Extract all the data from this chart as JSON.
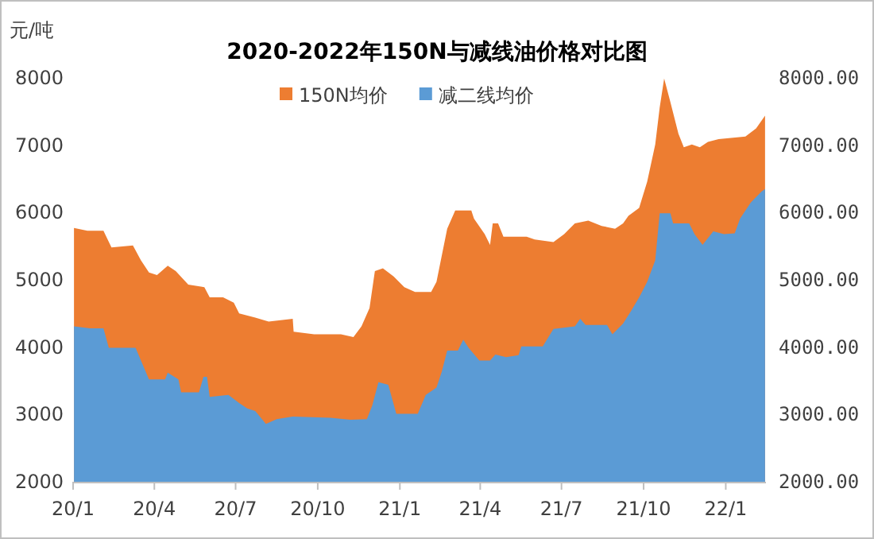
{
  "chart_data": {
    "type": "area",
    "title": "2020-2022年150N与减线油价格对比图",
    "ylabel": "元/吨",
    "xlim": [
      "2020-01-01",
      "2022-02-15"
    ],
    "xticks": [
      {
        "value": "2020-01-01",
        "label": "20/1"
      },
      {
        "value": "2020-04-01",
        "label": "20/4"
      },
      {
        "value": "2020-07-01",
        "label": "20/7"
      },
      {
        "value": "2020-10-01",
        "label": "20/10"
      },
      {
        "value": "2021-01-01",
        "label": "21/1"
      },
      {
        "value": "2021-04-01",
        "label": "21/4"
      },
      {
        "value": "2021-07-01",
        "label": "21/7"
      },
      {
        "value": "2021-10-01",
        "label": "21/10"
      },
      {
        "value": "2022-01-01",
        "label": "22/1"
      }
    ],
    "ylim": [
      2000,
      8000
    ],
    "yticks": [
      2000,
      3000,
      4000,
      5000,
      6000,
      7000,
      8000
    ],
    "y2lim": [
      2000,
      8000
    ],
    "y2ticks": [
      {
        "value": 2000,
        "label": "2000.00"
      },
      {
        "value": 3000,
        "label": "3000.00"
      },
      {
        "value": 4000,
        "label": "4000.00"
      },
      {
        "value": 5000,
        "label": "5000.00"
      },
      {
        "value": 6000,
        "label": "6000.00"
      },
      {
        "value": 7000,
        "label": "7000.00"
      },
      {
        "value": 8000,
        "label": "8000.00"
      }
    ],
    "legend": "top",
    "grid": false,
    "series": [
      {
        "name": "150N均价",
        "color": "#ed7d31",
        "x": [
          "2020-01-02",
          "2020-01-17",
          "2020-02-04",
          "2020-02-13",
          "2020-03-08",
          "2020-03-17",
          "2020-03-26",
          "2020-04-04",
          "2020-04-16",
          "2020-04-25",
          "2020-05-09",
          "2020-05-27",
          "2020-06-02",
          "2020-06-17",
          "2020-06-29",
          "2020-07-05",
          "2020-07-23",
          "2020-08-07",
          "2020-09-03",
          "2020-09-04",
          "2020-09-27",
          "2020-10-27",
          "2020-11-10",
          "2020-11-19",
          "2020-11-28",
          "2020-12-04",
          "2020-12-13",
          "2020-12-25",
          "2021-01-06",
          "2021-01-18",
          "2021-02-05",
          "2021-02-11",
          "2021-02-23",
          "2021-03-04",
          "2021-03-22",
          "2021-03-25",
          "2021-04-06",
          "2021-04-12",
          "2021-04-15",
          "2021-04-21",
          "2021-04-27",
          "2021-05-23",
          "2021-06-01",
          "2021-06-22",
          "2021-07-04",
          "2021-07-16",
          "2021-07-31",
          "2021-08-15",
          "2021-08-30",
          "2021-09-08",
          "2021-09-14",
          "2021-09-26",
          "2021-10-05",
          "2021-10-14",
          "2021-10-19",
          "2021-10-24",
          "2021-10-31",
          "2021-11-09",
          "2021-11-15",
          "2021-11-24",
          "2021-12-03",
          "2021-12-12",
          "2021-12-24",
          "2022-01-23",
          "2022-02-04",
          "2022-02-14"
        ],
        "values": [
          5770,
          5730,
          5730,
          5480,
          5510,
          5290,
          5110,
          5070,
          5210,
          5130,
          4930,
          4890,
          4740,
          4740,
          4660,
          4500,
          4440,
          4380,
          4420,
          4230,
          4190,
          4190,
          4150,
          4310,
          4580,
          5130,
          5170,
          5050,
          4890,
          4820,
          4820,
          4970,
          5760,
          6030,
          6030,
          5910,
          5680,
          5520,
          5840,
          5840,
          5640,
          5640,
          5600,
          5560,
          5680,
          5840,
          5880,
          5800,
          5760,
          5840,
          5950,
          6070,
          6460,
          7010,
          7560,
          7990,
          7640,
          7170,
          6970,
          7010,
          6970,
          7050,
          7090,
          7130,
          7250,
          7440
        ]
      },
      {
        "name": "减二线均价",
        "color": "#5b9bd5",
        "x": [
          "2020-01-02",
          "2020-01-20",
          "2020-02-04",
          "2020-02-10",
          "2020-03-11",
          "2020-03-17",
          "2020-03-26",
          "2020-04-13",
          "2020-04-16",
          "2020-04-28",
          "2020-05-01",
          "2020-05-21",
          "2020-05-26",
          "2020-05-30",
          "2020-06-02",
          "2020-06-23",
          "2020-07-05",
          "2020-07-14",
          "2020-07-23",
          "2020-08-04",
          "2020-08-16",
          "2020-09-03",
          "2020-10-15",
          "2020-11-07",
          "2020-11-25",
          "2020-12-01",
          "2020-12-08",
          "2020-12-19",
          "2020-12-28",
          "2021-01-21",
          "2021-01-30",
          "2021-02-11",
          "2021-02-17",
          "2021-02-23",
          "2021-03-07",
          "2021-03-13",
          "2021-03-19",
          "2021-03-31",
          "2021-04-12",
          "2021-04-18",
          "2021-04-30",
          "2021-05-14",
          "2021-05-17",
          "2021-06-10",
          "2021-06-22",
          "2021-07-16",
          "2021-07-22",
          "2021-07-28",
          "2021-08-21",
          "2021-08-27",
          "2021-09-08",
          "2021-09-17",
          "2021-09-26",
          "2021-10-05",
          "2021-10-14",
          "2021-10-19",
          "2021-10-31",
          "2021-11-03",
          "2021-11-21",
          "2021-11-27",
          "2021-12-06",
          "2021-12-18",
          "2021-12-30",
          "2022-01-11",
          "2022-01-17",
          "2022-01-29",
          "2022-02-10",
          "2022-02-14"
        ],
        "values": [
          4310,
          4280,
          4280,
          3990,
          3990,
          3800,
          3520,
          3520,
          3620,
          3520,
          3330,
          3330,
          3560,
          3560,
          3260,
          3290,
          3170,
          3090,
          3050,
          2860,
          2930,
          2970,
          2950,
          2920,
          2930,
          3130,
          3480,
          3440,
          3010,
          3010,
          3290,
          3400,
          3640,
          3950,
          3950,
          4110,
          3990,
          3800,
          3800,
          3890,
          3850,
          3880,
          4010,
          4010,
          4270,
          4310,
          4420,
          4330,
          4330,
          4190,
          4350,
          4540,
          4740,
          4970,
          5290,
          5990,
          5990,
          5840,
          5840,
          5680,
          5520,
          5720,
          5680,
          5690,
          5910,
          6150,
          6310,
          6350
        ]
      }
    ]
  }
}
